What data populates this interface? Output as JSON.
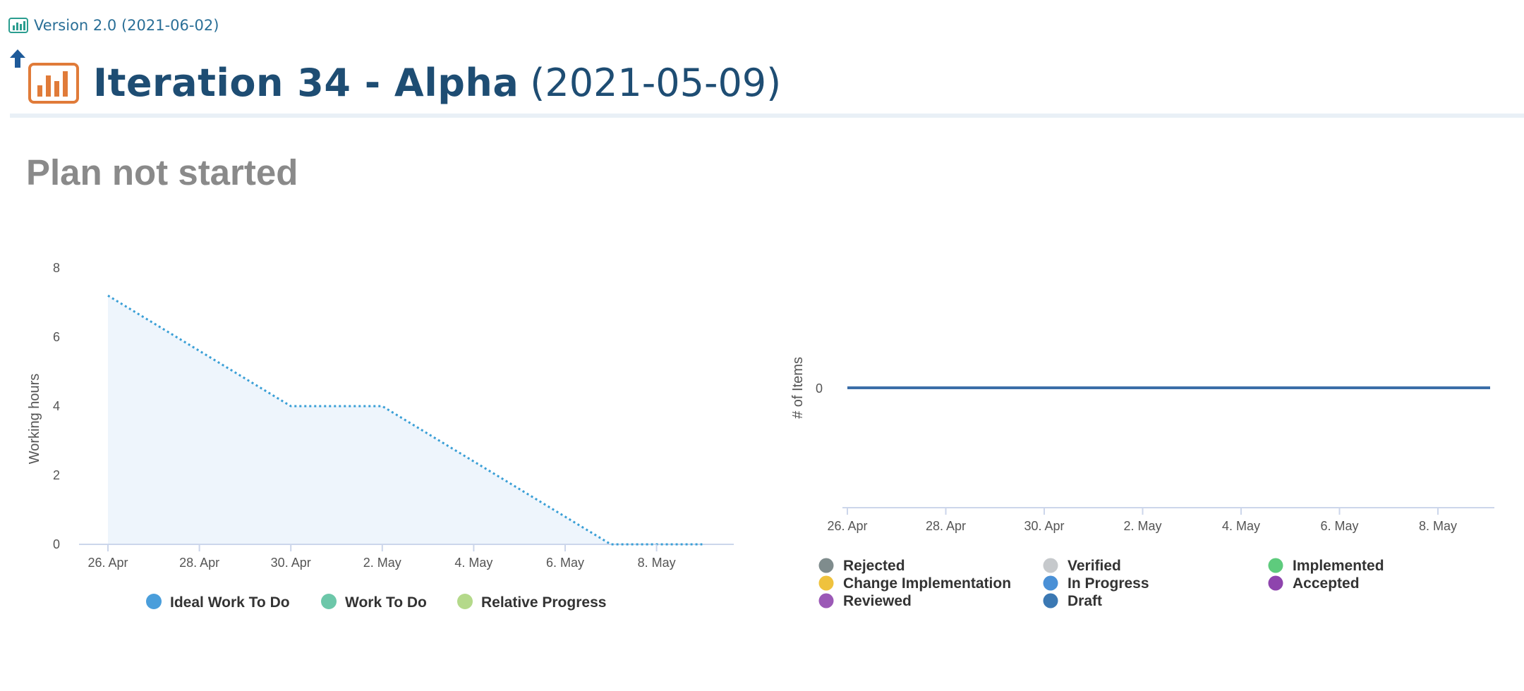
{
  "header": {
    "version_link": "Version 2.0 (2021-06-02)",
    "title": "Iteration 34 - Alpha",
    "date": "(2021-05-09)"
  },
  "status": "Plan not started",
  "colors": {
    "title": "#1e4d73",
    "link": "#2a6f97",
    "icon_orange": "#e07b39",
    "burndown_line": "#3a9fd6",
    "burndown_fill": "#eef5fc",
    "items_line": "#3b6ea8"
  },
  "chart_data": [
    {
      "type": "area",
      "ylabel": "Working hours",
      "xlabel": "",
      "x_tick_labels": [
        "26. Apr",
        "28. Apr",
        "30. Apr",
        "2. May",
        "4. May",
        "6. May",
        "8. May"
      ],
      "y_tick_labels": [
        "0",
        "2",
        "4",
        "6",
        "8"
      ],
      "ylim": [
        0,
        8
      ],
      "xlim": [
        "2021-04-26",
        "2021-05-09"
      ],
      "grid": false,
      "legend_position": "bottom",
      "legend": [
        {
          "name": "Ideal Work To Do",
          "color": "#4a9edb"
        },
        {
          "name": "Work To Do",
          "color": "#6cc7a9"
        },
        {
          "name": "Relative Progress",
          "color": "#b4d98a"
        }
      ],
      "series": [
        {
          "name": "Ideal Work To Do",
          "style": "dotted",
          "x": [
            "2021-04-26",
            "2021-04-30",
            "2021-05-02",
            "2021-05-07",
            "2021-05-09"
          ],
          "values": [
            7.2,
            4.0,
            4.0,
            0,
            0
          ]
        }
      ]
    },
    {
      "type": "line",
      "ylabel": "# of Items",
      "xlabel": "",
      "x_tick_labels": [
        "26. Apr",
        "28. Apr",
        "30. Apr",
        "2. May",
        "4. May",
        "6. May",
        "8. May"
      ],
      "y_tick_labels": [
        "0"
      ],
      "xlim": [
        "2021-04-26",
        "2021-05-09"
      ],
      "grid": false,
      "legend_position": "bottom",
      "legend": [
        {
          "name": "Rejected",
          "color": "#7f8c8d"
        },
        {
          "name": "Verified",
          "color": "#c6c9cc"
        },
        {
          "name": "Implemented",
          "color": "#5ecb7d"
        },
        {
          "name": "Change Implementation",
          "color": "#efc23d"
        },
        {
          "name": "In Progress",
          "color": "#4a90d6"
        },
        {
          "name": "Accepted",
          "color": "#8e44ad"
        },
        {
          "name": "Reviewed",
          "color": "#9b59b6"
        },
        {
          "name": "Draft",
          "color": "#3b78b3"
        }
      ],
      "series": [
        {
          "name": "Draft",
          "x": [
            "2021-04-26",
            "2021-05-09"
          ],
          "values": [
            0,
            0
          ]
        }
      ]
    }
  ]
}
